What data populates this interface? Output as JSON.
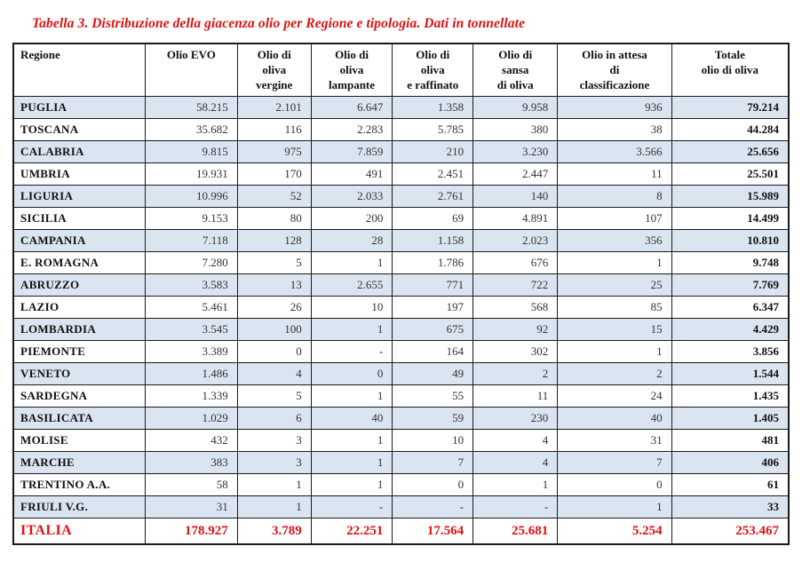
{
  "caption": "Tabella 3. Distribuzione della giacenza olio per Regione e tipologia. Dati in tonnellate",
  "colors": {
    "accent_red": "#e01212",
    "row_stripe": "#dbe5f1",
    "border": "#1a1a1a"
  },
  "chart_data": {
    "type": "table",
    "title": "Tabella 3. Distribuzione della giacenza olio per Regione e tipologia. Dati in tonnellate",
    "unit": "tonnellate",
    "columns": [
      "Regione",
      "Olio EVO",
      "Olio di\noliva\nvergine",
      "Olio di\noliva\nlampante",
      "Olio di\noliva\ne raffinato",
      "Olio di\nsansa\ndi oliva",
      "Olio in attesa\ndi\nclassificazione",
      "Totale\nolio di oliva"
    ],
    "rows": [
      {
        "region": "PUGLIA",
        "values": [
          "58.215",
          "2.101",
          "6.647",
          "1.358",
          "9.958",
          "936",
          "79.214"
        ]
      },
      {
        "region": "TOSCANA",
        "values": [
          "35.682",
          "116",
          "2.283",
          "5.785",
          "380",
          "38",
          "44.284"
        ]
      },
      {
        "region": "CALABRIA",
        "values": [
          "9.815",
          "975",
          "7.859",
          "210",
          "3.230",
          "3.566",
          "25.656"
        ]
      },
      {
        "region": "UMBRIA",
        "values": [
          "19.931",
          "170",
          "491",
          "2.451",
          "2.447",
          "11",
          "25.501"
        ]
      },
      {
        "region": "LIGURIA",
        "values": [
          "10.996",
          "52",
          "2.033",
          "2.761",
          "140",
          "8",
          "15.989"
        ]
      },
      {
        "region": "SICILIA",
        "values": [
          "9.153",
          "80",
          "200",
          "69",
          "4.891",
          "107",
          "14.499"
        ]
      },
      {
        "region": "CAMPANIA",
        "values": [
          "7.118",
          "128",
          "28",
          "1.158",
          "2.023",
          "356",
          "10.810"
        ]
      },
      {
        "region": "E. ROMAGNA",
        "values": [
          "7.280",
          "5",
          "1",
          "1.786",
          "676",
          "1",
          "9.748"
        ]
      },
      {
        "region": "ABRUZZO",
        "values": [
          "3.583",
          "13",
          "2.655",
          "771",
          "722",
          "25",
          "7.769"
        ]
      },
      {
        "region": "LAZIO",
        "values": [
          "5.461",
          "26",
          "10",
          "197",
          "568",
          "85",
          "6.347"
        ]
      },
      {
        "region": "LOMBARDIA",
        "values": [
          "3.545",
          "100",
          "1",
          "675",
          "92",
          "15",
          "4.429"
        ]
      },
      {
        "region": "PIEMONTE",
        "values": [
          "3.389",
          "0",
          "-",
          "164",
          "302",
          "1",
          "3.856"
        ]
      },
      {
        "region": "VENETO",
        "values": [
          "1.486",
          "4",
          "0",
          "49",
          "2",
          "2",
          "1.544"
        ]
      },
      {
        "region": "SARDEGNA",
        "values": [
          "1.339",
          "5",
          "1",
          "55",
          "11",
          "24",
          "1.435"
        ]
      },
      {
        "region": "BASILICATA",
        "values": [
          "1.029",
          "6",
          "40",
          "59",
          "230",
          "40",
          "1.405"
        ]
      },
      {
        "region": "MOLISE",
        "values": [
          "432",
          "3",
          "1",
          "10",
          "4",
          "31",
          "481"
        ]
      },
      {
        "region": "MARCHE",
        "values": [
          "383",
          "3",
          "1",
          "7",
          "4",
          "7",
          "406"
        ]
      },
      {
        "region": "TRENTINO A.A.",
        "values": [
          "58",
          "1",
          "1",
          "0",
          "1",
          "0",
          "61"
        ]
      },
      {
        "region": "FRIULI V.G.",
        "values": [
          "31",
          "1",
          "-",
          "-",
          "-",
          "1",
          "33"
        ]
      }
    ],
    "total_row": {
      "region": "ITALIA",
      "values": [
        "178.927",
        "3.789",
        "22.251",
        "17.564",
        "25.681",
        "5.254",
        "253.467"
      ]
    }
  }
}
